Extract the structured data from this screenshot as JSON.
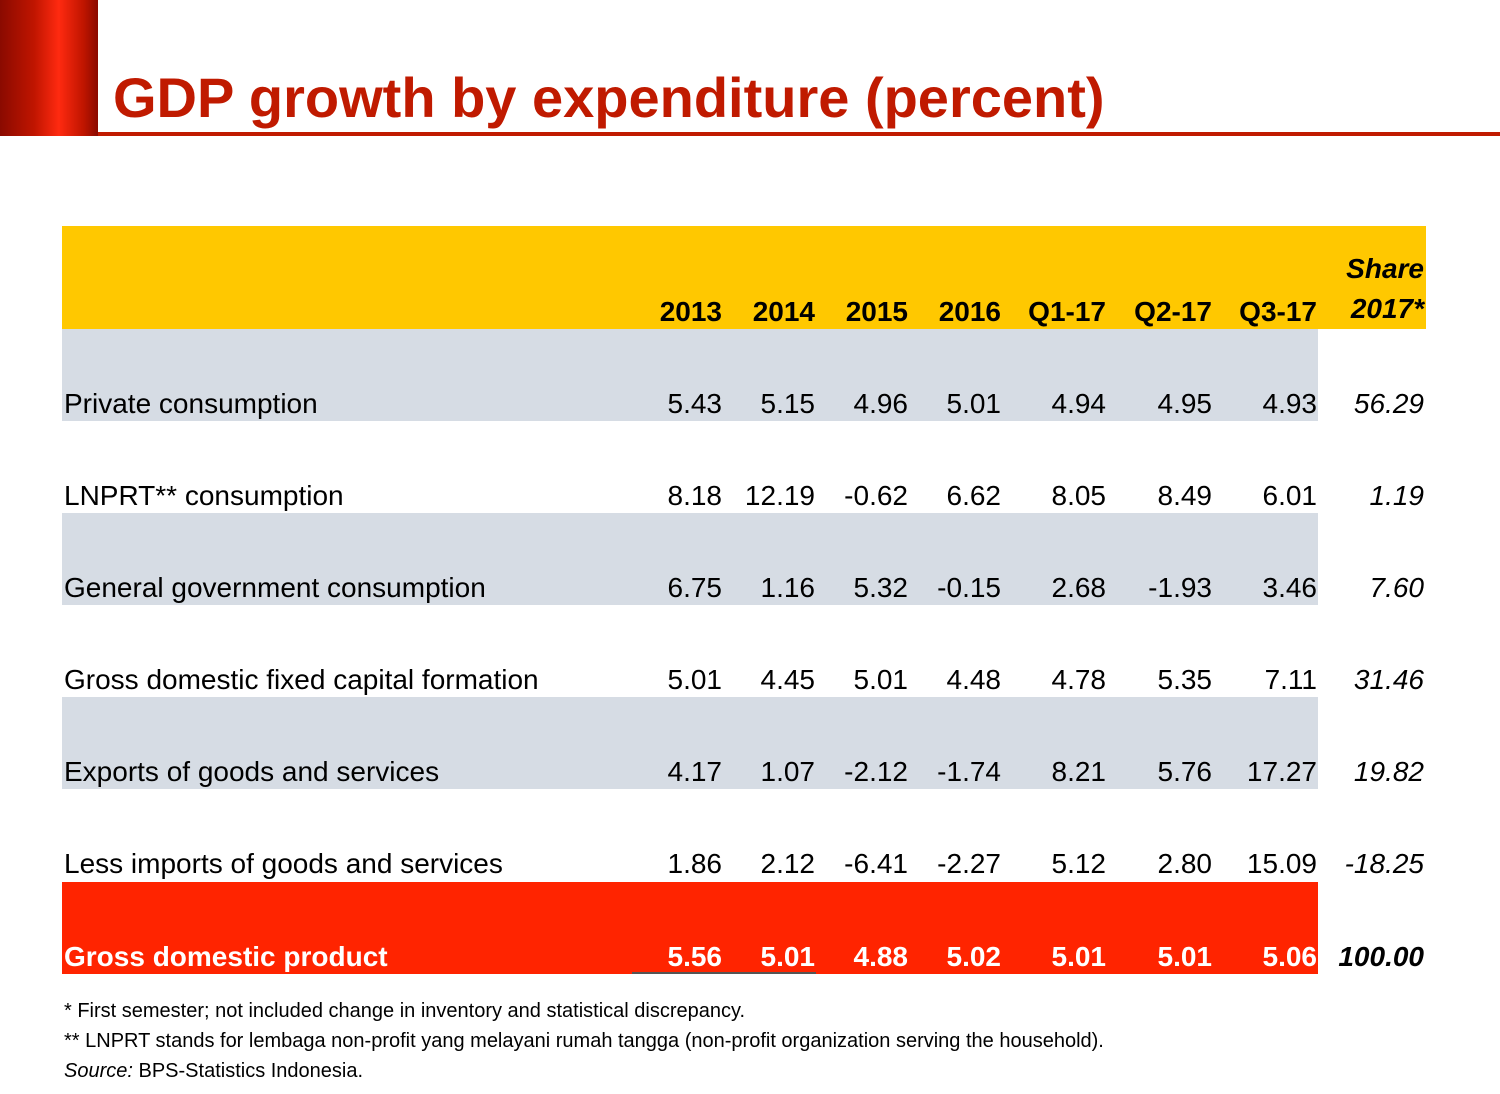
{
  "title": "GDP growth by expenditure (percent)",
  "table": {
    "headers": [
      "2013",
      "2014",
      "2015",
      "2016",
      "Q1-17",
      "Q2-17",
      "Q3-17"
    ],
    "share_header": [
      "Share",
      "2017*"
    ],
    "rows": [
      {
        "label": "Private consumption",
        "values": [
          "5.43",
          "5.15",
          "4.96",
          "5.01",
          "4.94",
          "4.95",
          "4.93"
        ],
        "share": "56.29"
      },
      {
        "label": "LNPRT** consumption",
        "values": [
          "8.18",
          "12.19",
          "-0.62",
          "6.62",
          "8.05",
          "8.49",
          "6.01"
        ],
        "share": "1.19"
      },
      {
        "label": "General government consumption",
        "values": [
          "6.75",
          "1.16",
          "5.32",
          "-0.15",
          "2.68",
          "-1.93",
          "3.46"
        ],
        "share": "7.60"
      },
      {
        "label": "Gross domestic fixed capital formation",
        "values": [
          "5.01",
          "4.45",
          "5.01",
          "4.48",
          "4.78",
          "5.35",
          "7.11"
        ],
        "share": "31.46"
      },
      {
        "label": "Exports of goods and services",
        "values": [
          "4.17",
          "1.07",
          "-2.12",
          "-1.74",
          "8.21",
          "5.76",
          "17.27"
        ],
        "share": "19.82"
      },
      {
        "label": "Less imports of goods and services",
        "values": [
          "1.86",
          "2.12",
          "-6.41",
          "-2.27",
          "5.12",
          "2.80",
          "15.09"
        ],
        "share": "-18.25"
      },
      {
        "label": "Gross domestic product",
        "values": [
          "5.56",
          "5.01",
          "4.88",
          "5.02",
          "5.01",
          "5.01",
          "5.06"
        ],
        "share": "100.00"
      }
    ]
  },
  "notes": {
    "note1": "* First semester; not included change in inventory and statistical discrepancy.",
    "note2": "** LNPRT stands for lembaga non-profit yang melayani rumah tangga (non-profit organization serving the household).",
    "source_label": "Source:",
    "source_text": " BPS-Statistics Indonesia."
  },
  "colors": {
    "title": "#c01a00",
    "header_band": "#ffc800",
    "grey_band": "#d6dce4",
    "gdp_band": "#ff2400"
  }
}
